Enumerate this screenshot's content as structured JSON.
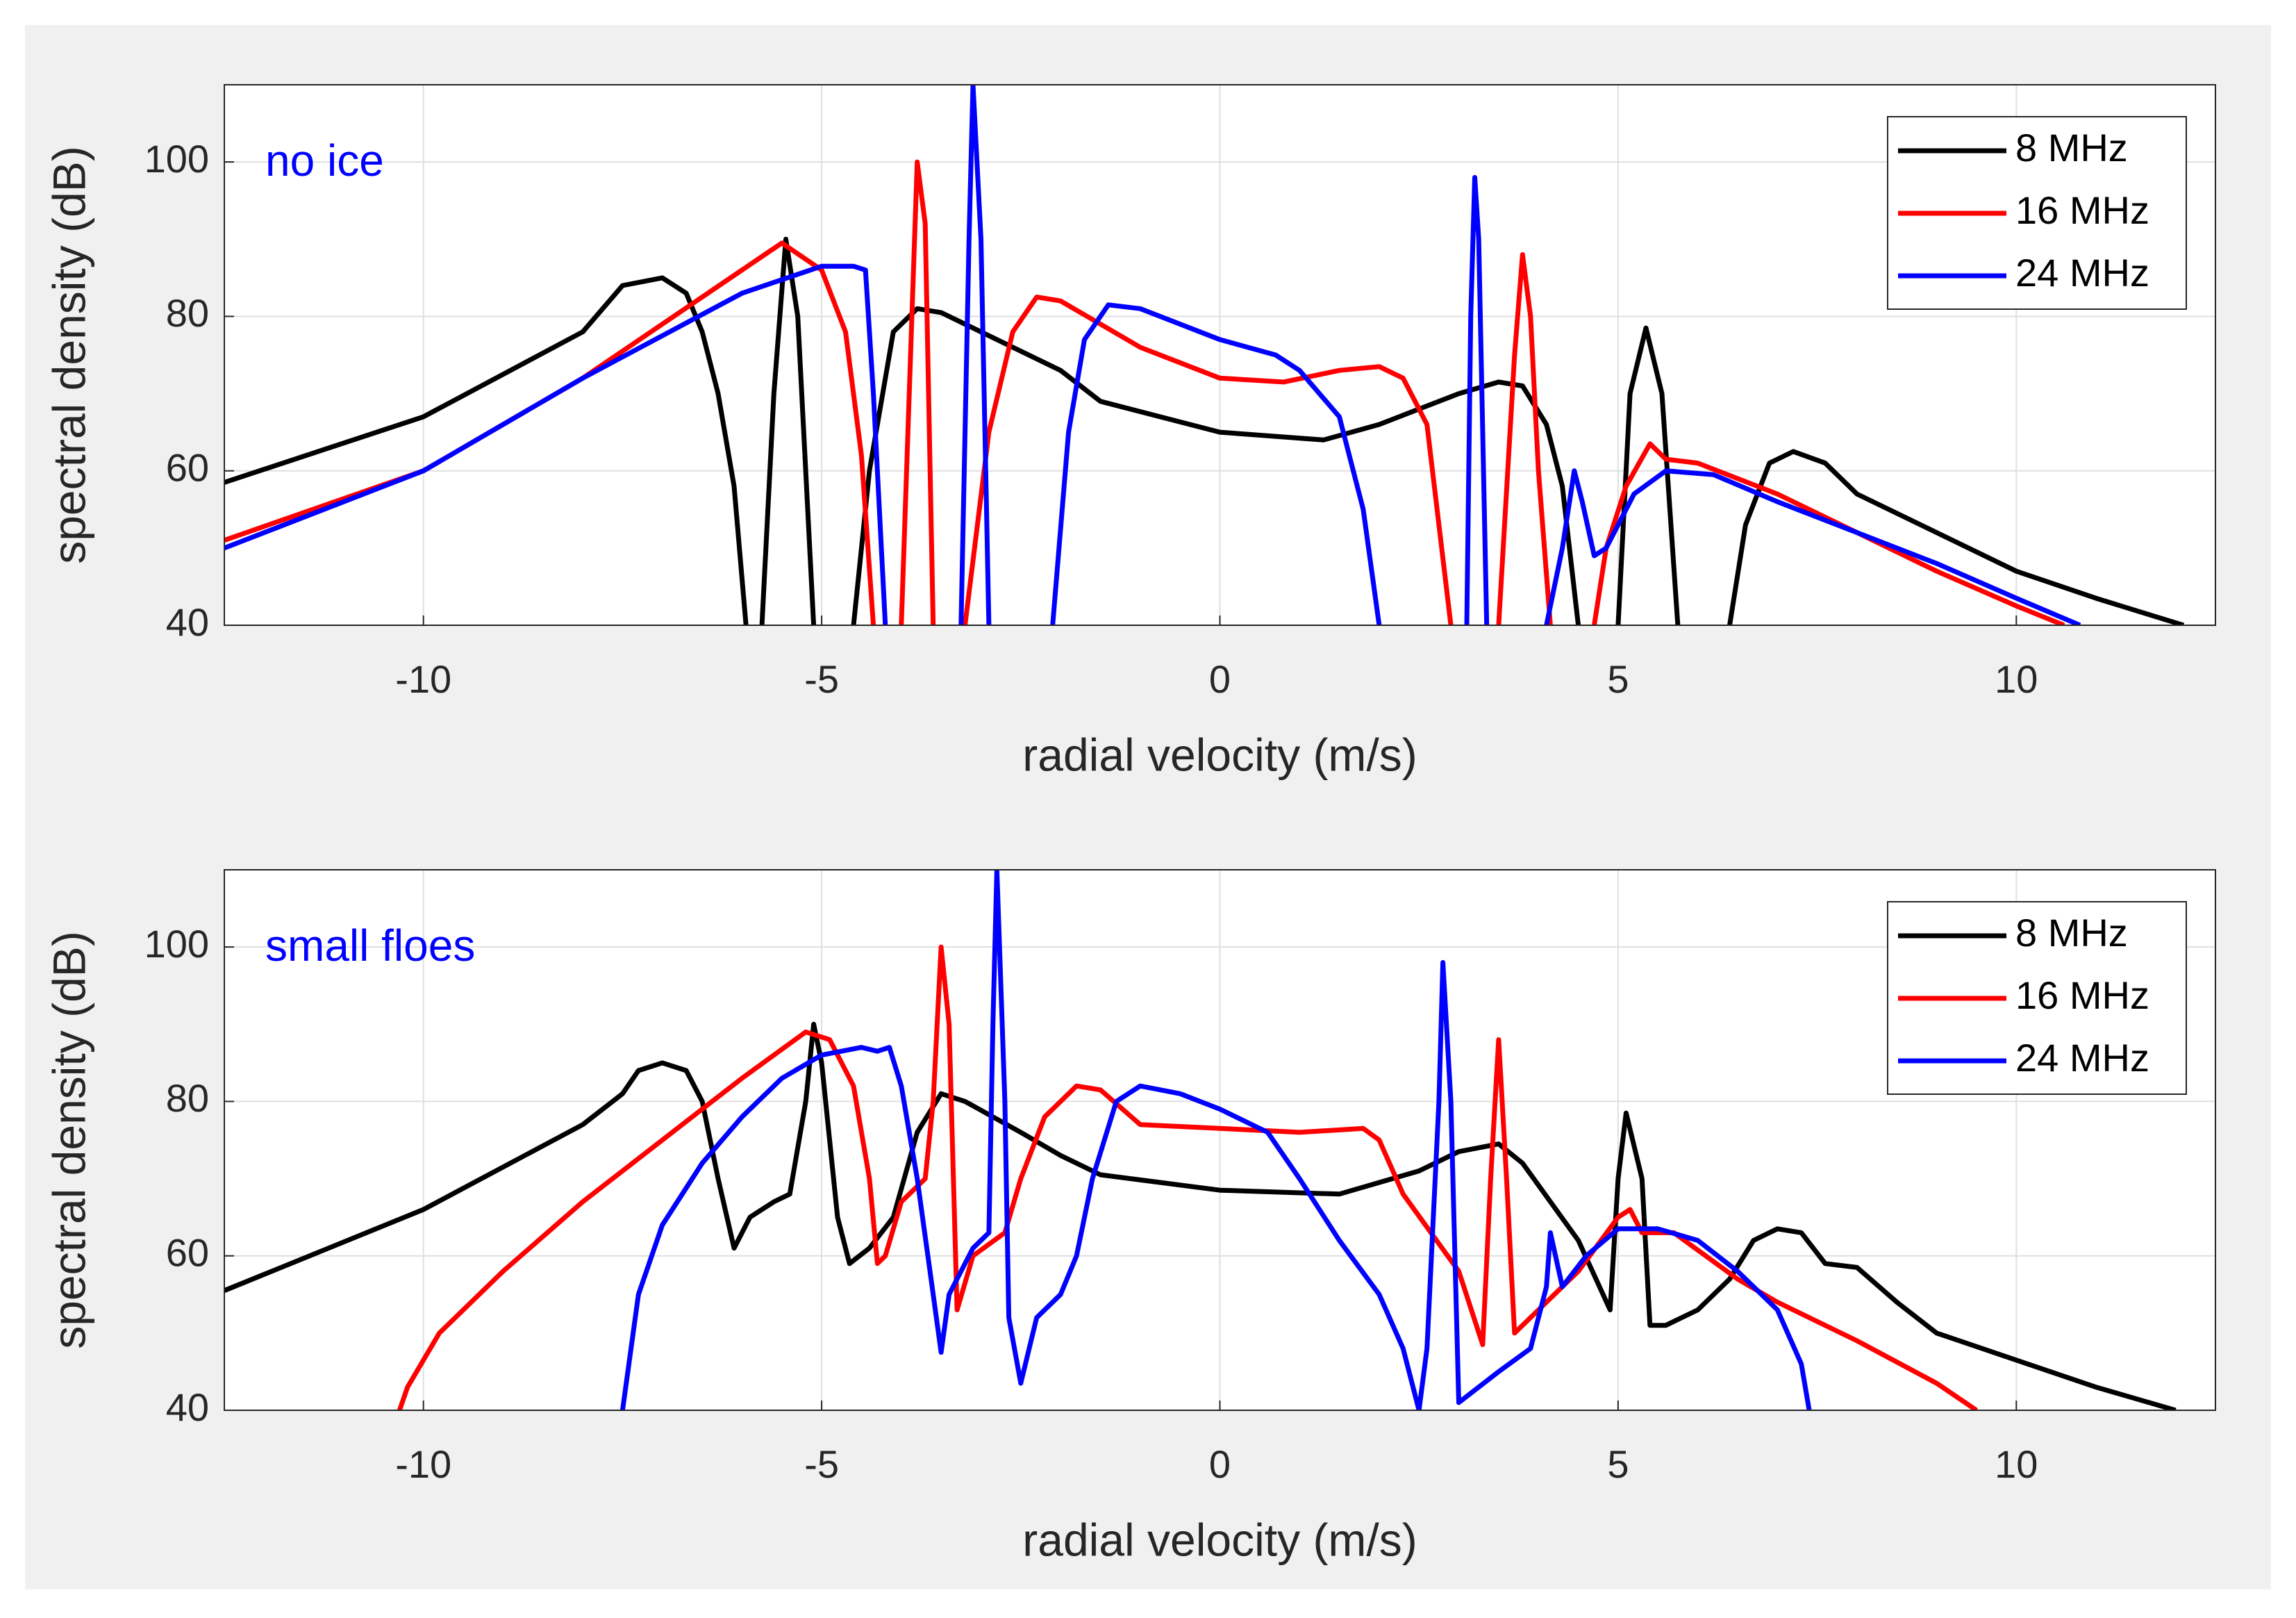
{
  "chart_data": [
    {
      "type": "line",
      "annotation": "no ice",
      "xlabel": "radial velocity (m/s)",
      "ylabel": "spectral density (dB)",
      "xlim": [
        -12.5,
        12.5
      ],
      "ylim": [
        40,
        110
      ],
      "xticks": [
        -10,
        -5,
        0,
        5,
        10
      ],
      "yticks": [
        40,
        60,
        80,
        100
      ],
      "grid": true,
      "legend": "upper right",
      "series": [
        {
          "name": "8 MHz",
          "color": "#000000",
          "x": [
            -12.5,
            -10,
            -8,
            -7.5,
            -7,
            -6.7,
            -6.5,
            -6.3,
            -6.1,
            -5.95,
            -5.85,
            -5.75,
            -5.6,
            -5.45,
            -5.3,
            -5.1,
            -4.85,
            -4.6,
            -4.4,
            -4.1,
            -3.8,
            -3.5,
            -2,
            -1.5,
            0,
            1.3,
            2,
            3,
            3.5,
            3.8,
            4.1,
            4.3,
            4.5,
            4.75,
            5.0,
            5.15,
            5.35,
            5.55,
            5.75,
            6.1,
            6.4,
            6.6,
            6.9,
            7.2,
            7.6,
            8,
            9,
            10,
            11,
            12.1
          ],
          "values": [
            58.5,
            67,
            78,
            84,
            85,
            83,
            78,
            70,
            58,
            40,
            null,
            40,
            70,
            90,
            80,
            40,
            null,
            40,
            60,
            78,
            81,
            80.5,
            73,
            69,
            65,
            64,
            66,
            70,
            71.5,
            71,
            66,
            58,
            40,
            null,
            40,
            70,
            78.5,
            70,
            40,
            null,
            40,
            53,
            61,
            62.5,
            61,
            57,
            52,
            47,
            43.5,
            40
          ]
        },
        {
          "name": "16 MHz",
          "color": "#ff0000",
          "x": [
            -12.5,
            -10,
            -8,
            -6,
            -5.5,
            -5,
            -4.7,
            -4.5,
            -4.35,
            -4.2,
            -4.0,
            -3.9,
            -3.8,
            -3.7,
            -3.6,
            -3.4,
            -3.2,
            -2.9,
            -2.6,
            -2.3,
            -2,
            -1.5,
            -1,
            0,
            0.8,
            1.5,
            2,
            2.3,
            2.6,
            2.9,
            3.2,
            3.5,
            3.7,
            3.8,
            3.9,
            4.0,
            4.15,
            4.4,
            4.7,
            4.85,
            5.1,
            5.4,
            5.6,
            6,
            7,
            8,
            9,
            10,
            10.6
          ],
          "values": [
            51,
            60,
            72,
            86,
            89.5,
            86,
            78,
            62,
            40,
            null,
            40,
            70,
            100,
            92,
            40,
            null,
            40,
            65,
            78,
            82.5,
            82,
            79,
            76,
            72,
            71.5,
            73,
            73.5,
            72,
            66,
            40,
            null,
            40,
            75,
            88,
            80,
            60,
            40,
            null,
            40,
            50,
            58,
            63.5,
            61.5,
            61,
            57,
            52,
            47,
            42.5,
            40
          ]
        },
        {
          "name": "24 MHz",
          "color": "#0000ff",
          "x": [
            -12.5,
            -10,
            -8,
            -6,
            -5,
            -4.6,
            -4.45,
            -4.35,
            -4.2,
            -3.7,
            -3.25,
            -3.15,
            -3.1,
            -3.0,
            -2.9,
            -2.5,
            -2.1,
            -1.9,
            -1.7,
            -1.4,
            -1,
            0,
            0.7,
            1,
            1.5,
            1.8,
            2.0,
            2.5,
            3.1,
            3.15,
            3.2,
            3.25,
            3.35,
            3.7,
            4.1,
            4.3,
            4.45,
            4.55,
            4.7,
            4.85,
            5.2,
            5.6,
            6.2,
            7,
            8,
            9,
            10,
            10.8
          ],
          "values": [
            50,
            60,
            72,
            83,
            86.5,
            86.5,
            86,
            70,
            40,
            null,
            40,
            90,
            110,
            90,
            40,
            null,
            40,
            65,
            77,
            81.5,
            81,
            77,
            75,
            73,
            67,
            55,
            40,
            null,
            40,
            80,
            98,
            90,
            40,
            null,
            40,
            50,
            60,
            56,
            49,
            50,
            57,
            60,
            59.5,
            56,
            52,
            48,
            43.5,
            40
          ]
        }
      ]
    },
    {
      "type": "line",
      "annotation": "small floes",
      "xlabel": "radial velocity (m/s)",
      "ylabel": "spectral density (dB)",
      "xlim": [
        -12.5,
        12.5
      ],
      "ylim": [
        40,
        110
      ],
      "xticks": [
        -10,
        -5,
        0,
        5,
        10
      ],
      "yticks": [
        40,
        60,
        80,
        100
      ],
      "grid": true,
      "legend": "upper right",
      "series": [
        {
          "name": "8 MHz",
          "color": "#000000",
          "x": [
            -12.5,
            -10,
            -8,
            -7.5,
            -7.3,
            -7,
            -6.7,
            -6.5,
            -6.3,
            -6.1,
            -5.9,
            -5.6,
            -5.4,
            -5.2,
            -5.1,
            -5.0,
            -4.8,
            -4.65,
            -4.4,
            -4.1,
            -3.8,
            -3.5,
            -3.2,
            -2.5,
            -2,
            -1.5,
            0,
            1.5,
            2,
            2.5,
            3,
            3.5,
            3.8,
            4.5,
            4.9,
            5.0,
            5.1,
            5.3,
            5.4,
            5.6,
            6,
            6.4,
            6.7,
            7,
            7.3,
            7.6,
            8,
            8.5,
            9,
            10,
            11,
            12
          ],
          "values": [
            55.5,
            66,
            77,
            81,
            84,
            85,
            84,
            80,
            70,
            61,
            65,
            67,
            68,
            80,
            90,
            85,
            65,
            59,
            61,
            65,
            76,
            81,
            80,
            76,
            73,
            70.5,
            68.5,
            68,
            69.5,
            71,
            73.5,
            74.5,
            72,
            62,
            53,
            70,
            78.5,
            70,
            51,
            51,
            53,
            57,
            62,
            63.5,
            63,
            59,
            58.5,
            54,
            50,
            46.5,
            43,
            40
          ]
        },
        {
          "name": "16 MHz",
          "color": "#ff0000",
          "x": [
            -10.3,
            -10.2,
            -9.8,
            -9,
            -8,
            -7,
            -6,
            -5.2,
            -4.9,
            -4.6,
            -4.4,
            -4.3,
            -4.2,
            -4.0,
            -3.7,
            -3.6,
            -3.5,
            -3.4,
            -3.3,
            -3.1,
            -2.7,
            -2.5,
            -2.2,
            -1.8,
            -1.5,
            -1,
            0,
            1,
            1.8,
            2,
            2.3,
            3,
            3.3,
            3.4,
            3.5,
            3.6,
            3.7,
            4.5,
            5,
            5.15,
            5.3,
            5.7,
            6.5,
            7,
            8,
            9,
            9.5
          ],
          "values": [
            40,
            43,
            50,
            58,
            67,
            75,
            83,
            89,
            88,
            82,
            70,
            59,
            60,
            67,
            70,
            80,
            100,
            90,
            53,
            60,
            63,
            70,
            78,
            82,
            81.5,
            77,
            76.5,
            76,
            76.5,
            75,
            68,
            58,
            48.5,
            70,
            88,
            70,
            50,
            58,
            65,
            66,
            63,
            63,
            57,
            54,
            49,
            43.5,
            40
          ]
        },
        {
          "name": "24 MHz",
          "color": "#0000ff",
          "x": [
            -7.5,
            -7.3,
            -7,
            -6.5,
            -6,
            -5.5,
            -5,
            -4.5,
            -4.3,
            -4.15,
            -4,
            -3.8,
            -3.6,
            -3.5,
            -3.4,
            -3.1,
            -2.9,
            -2.85,
            -2.8,
            -2.7,
            -2.65,
            -2.5,
            -2.3,
            -2,
            -1.8,
            -1.6,
            -1.3,
            -1,
            -0.5,
            0,
            0.6,
            1,
            1.5,
            2,
            2.3,
            2.5,
            2.6,
            2.75,
            2.8,
            2.9,
            3.0,
            3.5,
            3.9,
            4.1,
            4.15,
            4.3,
            4.6,
            5,
            5.5,
            6,
            6.5,
            7,
            7.3,
            7.4
          ],
          "values": [
            40,
            55,
            64,
            72,
            78,
            83,
            86,
            87,
            86.5,
            87,
            82,
            70,
            55,
            47.5,
            55,
            61,
            63,
            90,
            110,
            80,
            52,
            43.5,
            52,
            55,
            60,
            70,
            80,
            82,
            81,
            79,
            76,
            70,
            62,
            55,
            48,
            40,
            48,
            80,
            98,
            80,
            41,
            45,
            48,
            56,
            63,
            56,
            60,
            63.5,
            63.5,
            62,
            58,
            53,
            46,
            40
          ]
        }
      ]
    }
  ]
}
